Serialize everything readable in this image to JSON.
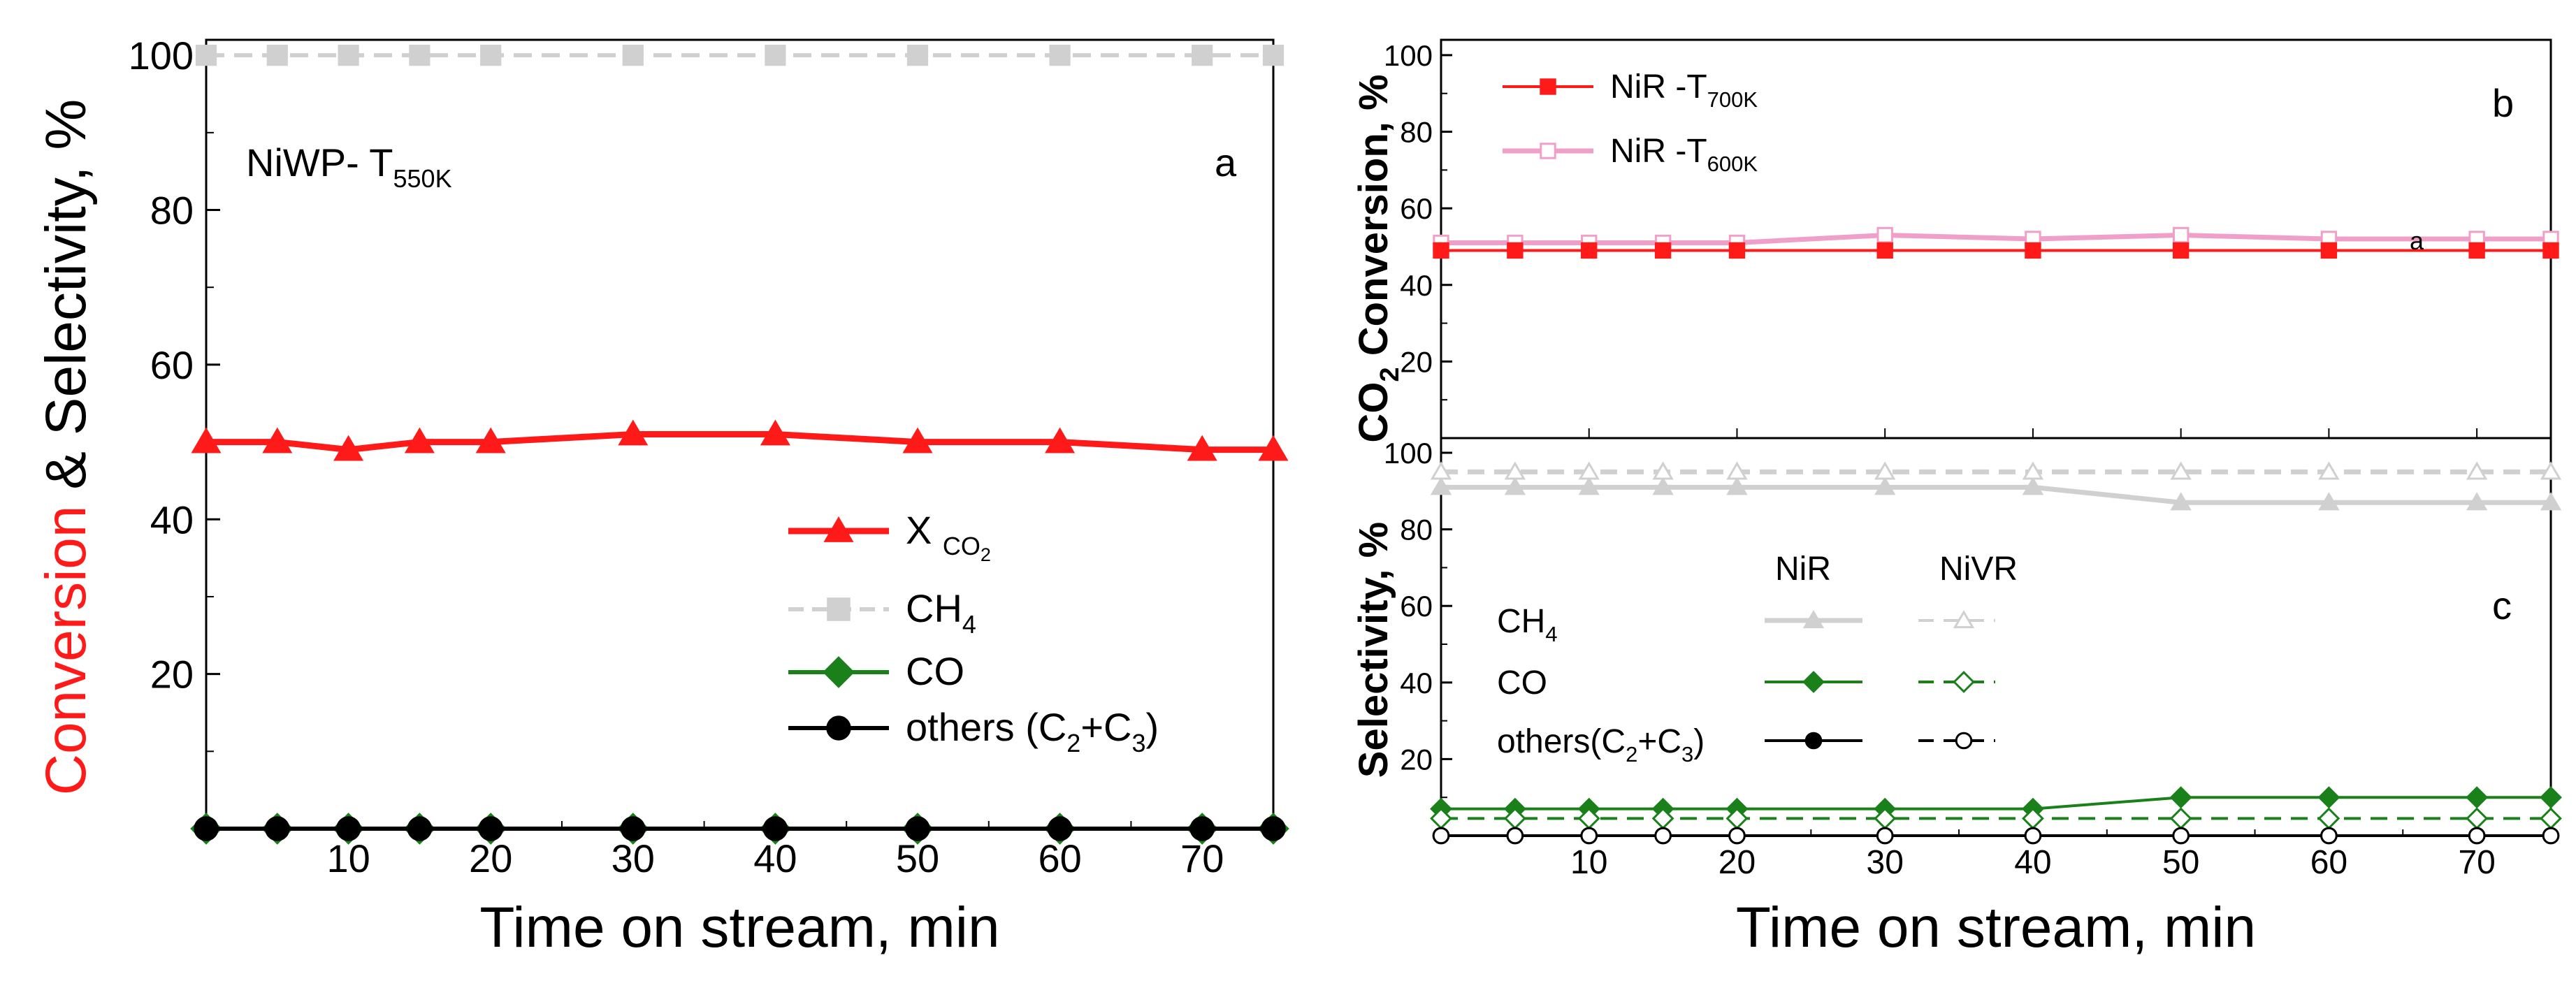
{
  "colors": {
    "red": "#ff1a1a",
    "gray": "#c8c8c8",
    "lightgray": "#d0d0d0",
    "green": "#1a801a",
    "black": "#000000",
    "pink": "#f0a0c8"
  },
  "chart_data": [
    {
      "panel": "a",
      "type": "line",
      "title": "NiWP- T550K",
      "title_main": "NiWP- T",
      "title_sub": "550K",
      "panel_label": "a",
      "xlabel": "Time on stream, min",
      "ylabel_part1": "Conversion",
      "ylabel_part2": "& Selectivity, %",
      "xlim": [
        0,
        75
      ],
      "ylim": [
        0,
        102
      ],
      "xticks": [
        10,
        20,
        30,
        40,
        50,
        60,
        70
      ],
      "yticks": [
        20,
        40,
        60,
        80,
        100
      ],
      "x": [
        0,
        5,
        10,
        15,
        20,
        30,
        40,
        50,
        60,
        70,
        75
      ],
      "series": [
        {
          "name": "X CO2",
          "legend_main": "X",
          "legend_sub": "CO",
          "legend_subsub": "2",
          "color": "red",
          "marker": "triangle",
          "filled": true,
          "dashed": false,
          "values": [
            50,
            50,
            49,
            50,
            50,
            51,
            51,
            50,
            50,
            49,
            49
          ]
        },
        {
          "name": "CH4",
          "legend_main": "CH",
          "legend_sub": "4",
          "color": "lightgray",
          "marker": "square",
          "filled": true,
          "dashed": true,
          "values": [
            100,
            100,
            100,
            100,
            100,
            100,
            100,
            100,
            100,
            100,
            100
          ]
        },
        {
          "name": "CO",
          "legend_main": "CO",
          "legend_sub": "",
          "color": "green",
          "marker": "diamond",
          "filled": true,
          "dashed": false,
          "values": [
            0,
            0,
            0,
            0,
            0,
            0,
            0,
            0,
            0,
            0,
            0
          ]
        },
        {
          "name": "others (C2+C3)",
          "legend_main": "others (C",
          "legend_sub": "2",
          "legend_mid": "+C",
          "legend_sub2": "3",
          "legend_end": ")",
          "color": "black",
          "marker": "circle",
          "filled": true,
          "dashed": false,
          "values": [
            0,
            0,
            0,
            0,
            0,
            0,
            0,
            0,
            0,
            0,
            0
          ]
        }
      ]
    },
    {
      "panel": "b",
      "type": "line",
      "panel_label": "b",
      "inner_label": "a",
      "ylabel": "CO2 Conversion, %",
      "xlim": [
        0,
        75
      ],
      "ylim": [
        0,
        104
      ],
      "yticks": [
        20,
        40,
        60,
        80,
        100
      ],
      "x": [
        0,
        5,
        10,
        15,
        20,
        30,
        40,
        50,
        60,
        70,
        75
      ],
      "series": [
        {
          "name": "NiR -T700K",
          "legend_main": "NiR -T",
          "legend_sub": "700K",
          "color": "red",
          "marker": "square",
          "filled": true,
          "values": [
            49,
            49,
            49,
            49,
            49,
            49,
            49,
            49,
            49,
            49,
            49
          ]
        },
        {
          "name": "NiR -T600K",
          "legend_main": "NiR -T",
          "legend_sub": "600K",
          "color": "pink",
          "marker": "square",
          "filled": false,
          "values": [
            51,
            51,
            51,
            51,
            51,
            53,
            52,
            53,
            52,
            52,
            52
          ]
        }
      ]
    },
    {
      "panel": "c",
      "type": "line",
      "panel_label": "c",
      "xlabel": "Time on stream, min",
      "ylabel": "Selectivity, %",
      "xlim": [
        0,
        75
      ],
      "ylim": [
        0,
        100
      ],
      "xticks": [
        10,
        20,
        30,
        40,
        50,
        60,
        70
      ],
      "yticks": [
        20,
        40,
        60,
        80,
        100
      ],
      "x": [
        0,
        5,
        10,
        15,
        20,
        30,
        40,
        50,
        60,
        70,
        75
      ],
      "legend_col1": "NiR",
      "legend_col2": "NiVR",
      "legend_rows": [
        {
          "main": "CH",
          "sub": "4",
          "mid": "",
          "sub2": "",
          "end": ""
        },
        {
          "main": "CO",
          "sub": "",
          "mid": "",
          "sub2": "",
          "end": ""
        },
        {
          "main": "others(C",
          "sub": "2",
          "mid": "+C",
          "sub2": "3",
          "end": ")"
        }
      ],
      "series": [
        {
          "name": "CH4 NiR",
          "color": "lightgray",
          "marker": "triangle",
          "filled": true,
          "dashed": false,
          "values": [
            91,
            91,
            91,
            91,
            91,
            91,
            91,
            87,
            87,
            87,
            87
          ]
        },
        {
          "name": "CH4 NiVR",
          "color": "lightgray",
          "marker": "triangle",
          "filled": false,
          "dashed": true,
          "values": [
            95,
            95,
            95,
            95,
            95,
            95,
            95,
            95,
            95,
            95,
            95
          ]
        },
        {
          "name": "CO NiR",
          "color": "green",
          "marker": "diamond",
          "filled": true,
          "dashed": false,
          "values": [
            7,
            7,
            7,
            7,
            7,
            7,
            7,
            10,
            10,
            10,
            10
          ]
        },
        {
          "name": "CO NiVR",
          "color": "green",
          "marker": "diamond",
          "filled": false,
          "dashed": true,
          "values": [
            4.5,
            4.5,
            4.5,
            4.5,
            4.5,
            4.5,
            4.5,
            4.5,
            4.5,
            4.5,
            4.5
          ]
        },
        {
          "name": "others NiR",
          "color": "black",
          "marker": "circle",
          "filled": true,
          "dashed": false,
          "values": [
            0,
            0,
            0,
            0,
            0,
            0,
            0,
            0,
            0,
            0,
            0
          ]
        },
        {
          "name": "others NiVR",
          "color": "black",
          "marker": "circle",
          "filled": false,
          "dashed": true,
          "values": [
            0,
            0,
            0,
            0,
            0,
            0,
            0,
            0,
            0,
            0,
            0
          ]
        }
      ]
    }
  ]
}
